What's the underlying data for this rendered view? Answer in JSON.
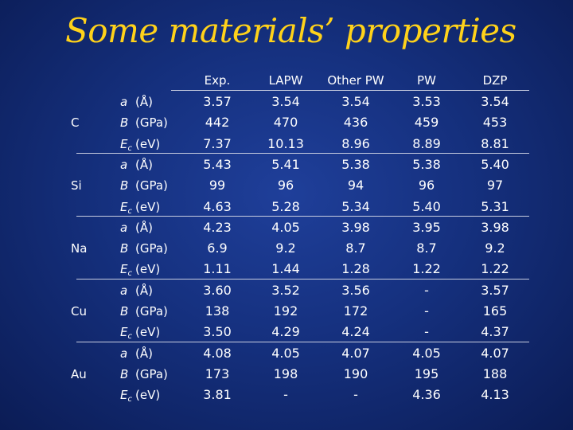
{
  "title": "Some materials’ properties",
  "columns": [
    "Exp.",
    "LAPW",
    "Other PW",
    "PW",
    "DZP"
  ],
  "materials": [
    {
      "name": "C",
      "rows": [
        {
          "symbol": "a",
          "subscript": "",
          "unit": "(Å)",
          "values": [
            "3.57",
            "3.54",
            "3.54",
            "3.53",
            "3.54"
          ]
        },
        {
          "symbol": "B",
          "subscript": "",
          "unit": "(GPa)",
          "values": [
            "442",
            "470",
            "436",
            "459",
            "453"
          ]
        },
        {
          "symbol": "E",
          "subscript": "c",
          "unit": "(eV)",
          "values": [
            "7.37",
            "10.13",
            "8.96",
            "8.89",
            "8.81"
          ]
        }
      ]
    },
    {
      "name": "Si",
      "rows": [
        {
          "symbol": "a",
          "subscript": "",
          "unit": "(Å)",
          "values": [
            "5.43",
            "5.41",
            "5.38",
            "5.38",
            "5.40"
          ]
        },
        {
          "symbol": "B",
          "subscript": "",
          "unit": "(GPa)",
          "values": [
            "99",
            "96",
            "94",
            "96",
            "97"
          ]
        },
        {
          "symbol": "E",
          "subscript": "c",
          "unit": "(eV)",
          "values": [
            "4.63",
            "5.28",
            "5.34",
            "5.40",
            "5.31"
          ]
        }
      ]
    },
    {
      "name": "Na",
      "rows": [
        {
          "symbol": "a",
          "subscript": "",
          "unit": "(Å)",
          "values": [
            "4.23",
            "4.05",
            "3.98",
            "3.95",
            "3.98"
          ]
        },
        {
          "symbol": "B",
          "subscript": "",
          "unit": "(GPa)",
          "values": [
            "6.9",
            "9.2",
            "8.7",
            "8.7",
            "9.2"
          ]
        },
        {
          "symbol": "E",
          "subscript": "c",
          "unit": "(eV)",
          "values": [
            "1.11",
            "1.44",
            "1.28",
            "1.22",
            "1.22"
          ]
        }
      ]
    },
    {
      "name": "Cu",
      "rows": [
        {
          "symbol": "a",
          "subscript": "",
          "unit": "(Å)",
          "values": [
            "3.60",
            "3.52",
            "3.56",
            "-",
            "3.57"
          ]
        },
        {
          "symbol": "B",
          "subscript": "",
          "unit": "(GPa)",
          "values": [
            "138",
            "192",
            "172",
            "-",
            "165"
          ]
        },
        {
          "symbol": "E",
          "subscript": "c",
          "unit": "(eV)",
          "values": [
            "3.50",
            "4.29",
            "4.24",
            "-",
            "4.37"
          ]
        }
      ]
    },
    {
      "name": "Au",
      "rows": [
        {
          "symbol": "a",
          "subscript": "",
          "unit": "(Å)",
          "values": [
            "4.08",
            "4.05",
            "4.07",
            "4.05",
            "4.07"
          ]
        },
        {
          "symbol": "B",
          "subscript": "",
          "unit": "(GPa)",
          "values": [
            "173",
            "198",
            "190",
            "195",
            "188"
          ]
        },
        {
          "symbol": "E",
          "subscript": "c",
          "unit": "(eV)",
          "values": [
            "3.81",
            "-",
            "-",
            "4.36",
            "4.13"
          ]
        }
      ]
    }
  ]
}
